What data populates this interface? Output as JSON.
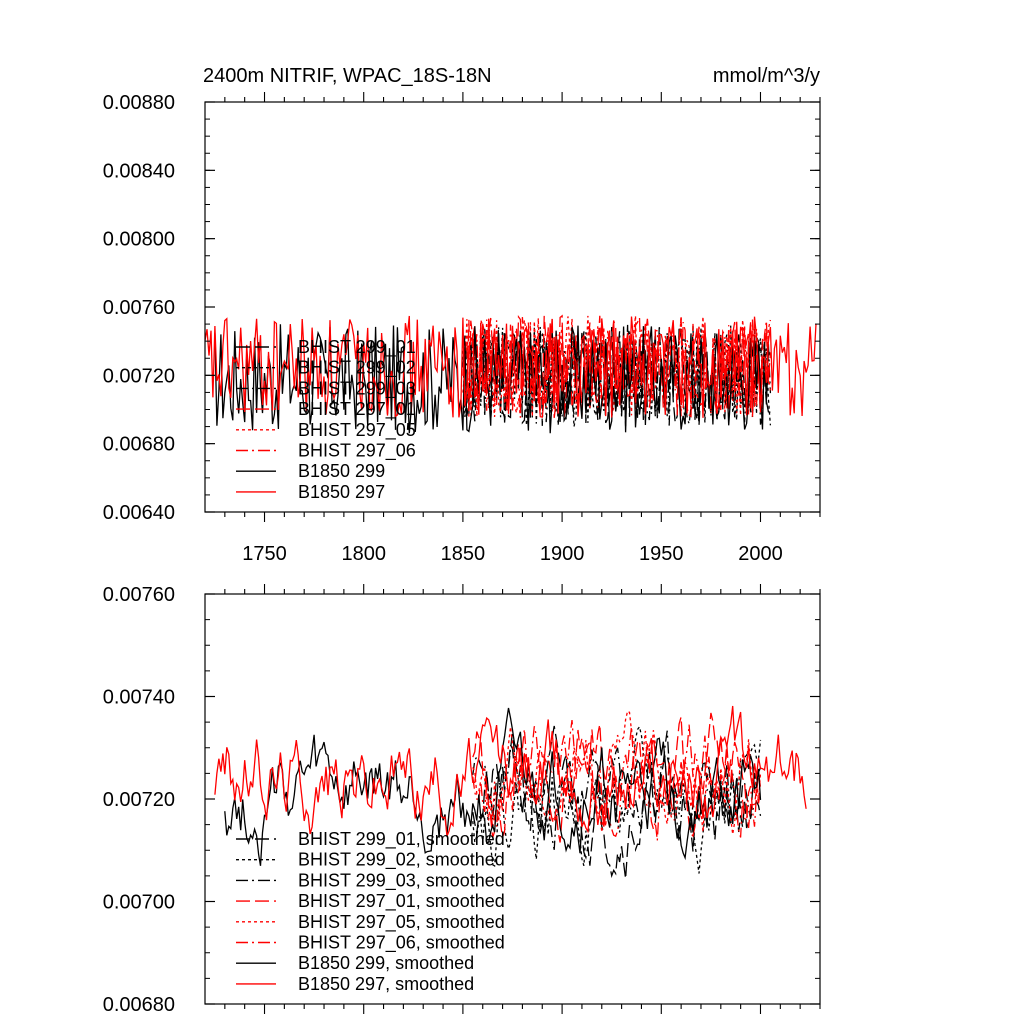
{
  "chart_data": [
    {
      "type": "line",
      "title_left": "2400m NITRIF, WPAC_18S-18N",
      "title_right": "mmol/m^3/y",
      "xlim": [
        1720,
        2030
      ],
      "ylim": [
        0.0064,
        0.0088
      ],
      "yticks": [
        "0.00640",
        "0.00680",
        "0.00720",
        "0.00760",
        "0.00800",
        "0.00840",
        "0.00880"
      ],
      "xticks": [
        "1750",
        "1800",
        "1850",
        "1900",
        "1950",
        "2000"
      ],
      "xlabel": "",
      "ylabel": "",
      "legend_position": "lower-left",
      "series": [
        {
          "name": "BHIST 299_01",
          "color": "#000000",
          "dash": "long",
          "x_start": 1850,
          "x_end": 2005,
          "mean": 0.0072,
          "amp": 0.0003,
          "seed": 11
        },
        {
          "name": "BHIST 299_02",
          "color": "#000000",
          "dash": "dot",
          "x_start": 1850,
          "x_end": 2005,
          "mean": 0.0072,
          "amp": 0.0003,
          "seed": 12
        },
        {
          "name": "BHIST 299_03",
          "color": "#000000",
          "dash": "dashdot",
          "x_start": 1850,
          "x_end": 2005,
          "mean": 0.0072,
          "amp": 0.0003,
          "seed": 13
        },
        {
          "name": "BHIST 297_01",
          "color": "#ff0000",
          "dash": "long",
          "x_start": 1850,
          "x_end": 2005,
          "mean": 0.00725,
          "amp": 0.0003,
          "seed": 14
        },
        {
          "name": "BHIST 297_05",
          "color": "#ff0000",
          "dash": "dot",
          "x_start": 1850,
          "x_end": 2005,
          "mean": 0.00725,
          "amp": 0.0003,
          "seed": 15
        },
        {
          "name": "BHIST 297_06",
          "color": "#ff0000",
          "dash": "dashdot",
          "x_start": 1850,
          "x_end": 2005,
          "mean": 0.00725,
          "amp": 0.0003,
          "seed": 16
        },
        {
          "name": "B1850 299",
          "color": "#000000",
          "dash": "solid",
          "x_start": 1725,
          "x_end": 2005,
          "mean": 0.00718,
          "amp": 0.00032,
          "seed": 17
        },
        {
          "name": "B1850 297",
          "color": "#ff0000",
          "dash": "solid",
          "x_start": 1720,
          "x_end": 2028,
          "mean": 0.00725,
          "amp": 0.0003,
          "seed": 18
        }
      ]
    },
    {
      "type": "line",
      "xlim": [
        1720,
        2030
      ],
      "ylim": [
        0.0068,
        0.0076
      ],
      "yticks": [
        "0.00680",
        "0.00700",
        "0.00720",
        "0.00740",
        "0.00760"
      ],
      "xticks": [],
      "xlabel": "",
      "ylabel": "",
      "legend_position": "lower-left",
      "series": [
        {
          "name": "BHIST 299_01, smoothed",
          "color": "#000000",
          "dash": "long",
          "x_start": 1855,
          "x_end": 2000,
          "mean": 0.0072,
          "amp": 0.00012,
          "seed": 21
        },
        {
          "name": "BHIST 299_02, smoothed",
          "color": "#000000",
          "dash": "dot",
          "x_start": 1855,
          "x_end": 2000,
          "mean": 0.0072,
          "amp": 0.00012,
          "seed": 22
        },
        {
          "name": "BHIST 299_03, smoothed",
          "color": "#000000",
          "dash": "dashdot",
          "x_start": 1855,
          "x_end": 2000,
          "mean": 0.0072,
          "amp": 0.00012,
          "seed": 23
        },
        {
          "name": "BHIST 297_01, smoothed",
          "color": "#ff0000",
          "dash": "long",
          "x_start": 1855,
          "x_end": 2000,
          "mean": 0.00725,
          "amp": 0.00013,
          "seed": 24
        },
        {
          "name": "BHIST 297_05, smoothed",
          "color": "#ff0000",
          "dash": "dot",
          "x_start": 1855,
          "x_end": 2000,
          "mean": 0.00725,
          "amp": 0.00012,
          "seed": 25
        },
        {
          "name": "BHIST 297_06, smoothed",
          "color": "#ff0000",
          "dash": "dashdot",
          "x_start": 1855,
          "x_end": 2000,
          "mean": 0.00725,
          "amp": 0.00013,
          "seed": 26
        },
        {
          "name": "B1850 299, smoothed",
          "color": "#000000",
          "dash": "solid",
          "x_start": 1730,
          "x_end": 2000,
          "mean": 0.0072,
          "amp": 0.00012,
          "seed": 27
        },
        {
          "name": "B1850 297, smoothed",
          "color": "#ff0000",
          "dash": "solid",
          "x_start": 1725,
          "x_end": 2023,
          "mean": 0.00725,
          "amp": 0.00012,
          "seed": 28
        }
      ]
    }
  ]
}
